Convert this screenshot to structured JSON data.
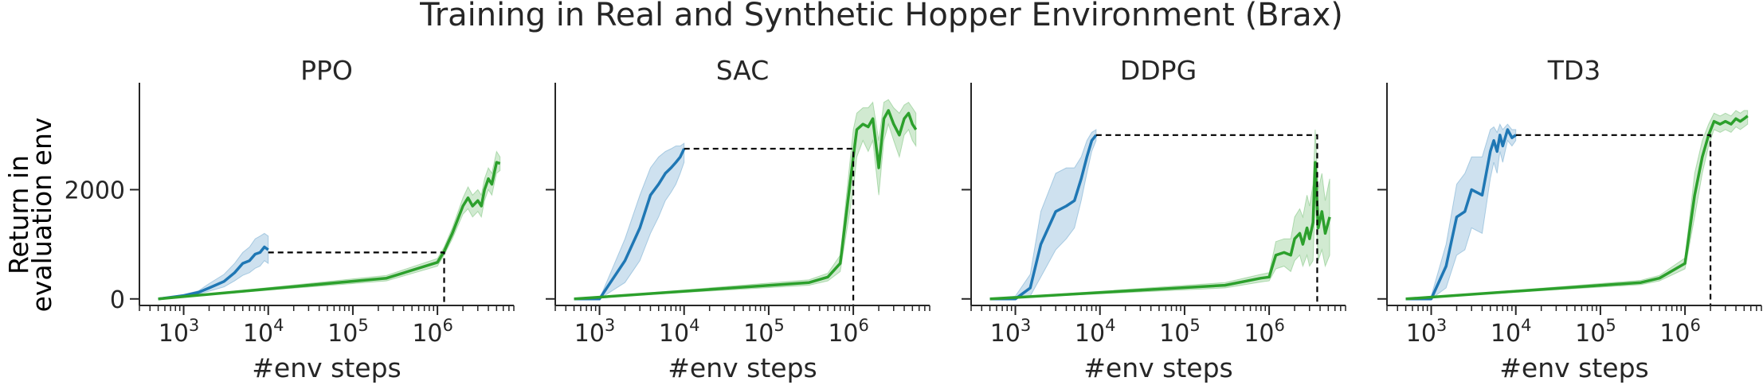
{
  "suptitle": "Training in Real and Synthetic Hopper Environment (Brax)",
  "ylabel_line1": "Return in",
  "ylabel_line2": "evaluation env",
  "colors": {
    "real": "#1f77b4",
    "synthetic": "#2ca02c",
    "reference": "#000000"
  },
  "chart_data": [
    {
      "type": "line",
      "title": "PPO",
      "xlabel": "#env steps",
      "x_scale": "log",
      "xlim": [
        300,
        8000000
      ],
      "ylim": [
        -120,
        3900
      ],
      "x_ticks": [
        "10^3",
        "10^4",
        "10^5",
        "10^6"
      ],
      "y_ticks": [
        "0",
        "2000"
      ],
      "series": [
        {
          "x": [
            500,
            1000,
            1500,
            2000,
            3000,
            4000,
            5000,
            6000,
            7000,
            8000,
            9000,
            10000
          ],
          "y": [
            0,
            60,
            120,
            200,
            320,
            480,
            650,
            700,
            820,
            850,
            950,
            900
          ],
          "lower": [
            0,
            40,
            90,
            140,
            220,
            330,
            430,
            480,
            560,
            600,
            700,
            650
          ],
          "upper": [
            0,
            80,
            150,
            280,
            450,
            650,
            850,
            950,
            1100,
            1150,
            1200,
            1150
          ]
        },
        {
          "x": [
            500,
            250000,
            1000000,
            1200000,
            1500000,
            2000000,
            2300000,
            2600000,
            3000000,
            3300000,
            3600000,
            4000000,
            4400000,
            5000000,
            5500000
          ],
          "y": [
            0,
            380,
            670,
            870,
            1200,
            1700,
            1850,
            1700,
            1800,
            1700,
            2000,
            2200,
            2100,
            2500,
            2480
          ],
          "lower": [
            0,
            330,
            600,
            800,
            1100,
            1550,
            1650,
            1500,
            1600,
            1500,
            1800,
            2000,
            1900,
            2300,
            2350
          ],
          "upper": [
            0,
            430,
            740,
            950,
            1300,
            1850,
            2050,
            1900,
            2000,
            1900,
            2200,
            2400,
            2300,
            2700,
            2600
          ]
        }
      ],
      "reference": {
        "y": 850,
        "x_start": 10000,
        "x_end": 1200000
      }
    },
    {
      "type": "line",
      "title": "SAC",
      "xlabel": "#env steps",
      "x_scale": "log",
      "xlim": [
        300,
        8000000
      ],
      "ylim": [
        -120,
        3900
      ],
      "x_ticks": [
        "10^3",
        "10^4",
        "10^5",
        "10^6"
      ],
      "y_ticks": [
        "0",
        "2000"
      ],
      "series": [
        {
          "x": [
            500,
            1000,
            2000,
            3000,
            4000,
            5000,
            6000,
            7000,
            8000,
            9000,
            10000
          ],
          "y": [
            0,
            0,
            700,
            1300,
            1900,
            2100,
            2300,
            2400,
            2500,
            2600,
            2750
          ],
          "lower": [
            0,
            0,
            300,
            700,
            1200,
            1500,
            1800,
            1950,
            2100,
            2300,
            2500
          ],
          "upper": [
            0,
            0,
            1100,
            1900,
            2400,
            2600,
            2700,
            2750,
            2800,
            2800,
            2850
          ]
        },
        {
          "x": [
            500,
            300000,
            500000,
            700000,
            1000000,
            1100000,
            1300000,
            1500000,
            1700000,
            2000000,
            2300000,
            2600000,
            3000000,
            3500000,
            4000000,
            4500000,
            5000000,
            5500000
          ],
          "y": [
            0,
            300,
            400,
            650,
            2600,
            3100,
            3200,
            3150,
            3300,
            2400,
            3300,
            3450,
            3200,
            3000,
            3300,
            3400,
            3200,
            3100
          ],
          "lower": [
            0,
            250,
            330,
            500,
            2000,
            2600,
            2900,
            2700,
            2900,
            1900,
            2900,
            3200,
            2900,
            2600,
            3000,
            3100,
            2900,
            2800
          ],
          "upper": [
            0,
            350,
            470,
            800,
            3100,
            3400,
            3500,
            3500,
            3600,
            2900,
            3600,
            3650,
            3500,
            3400,
            3550,
            3600,
            3500,
            3400
          ]
        }
      ],
      "reference": {
        "y": 2750,
        "x_start": 10000,
        "x_end": 1000000
      }
    },
    {
      "type": "line",
      "title": "DDPG",
      "xlabel": "#env steps",
      "x_scale": "log",
      "xlim": [
        300,
        8000000
      ],
      "ylim": [
        -120,
        3900
      ],
      "x_ticks": [
        "10^3",
        "10^4",
        "10^5",
        "10^6"
      ],
      "y_ticks": [
        "0",
        "2000"
      ],
      "series": [
        {
          "x": [
            500,
            1000,
            1500,
            2000,
            3000,
            4000,
            5000,
            6000,
            7000,
            8000,
            9000
          ],
          "y": [
            0,
            0,
            200,
            1000,
            1600,
            1700,
            1800,
            2200,
            2600,
            2900,
            3000
          ],
          "lower": [
            0,
            0,
            50,
            400,
            900,
            1100,
            1300,
            1800,
            2300,
            2700,
            2900
          ],
          "upper": [
            0,
            50,
            450,
            1600,
            2300,
            2400,
            2400,
            2600,
            2900,
            3050,
            3100
          ]
        },
        {
          "x": [
            500,
            300000,
            800000,
            1000000,
            1200000,
            1500000,
            1800000,
            2000000,
            2300000,
            2500000,
            2800000,
            3000000,
            3300000,
            3500000,
            3800000,
            4200000,
            4600000,
            5200000
          ],
          "y": [
            0,
            250,
            380,
            400,
            800,
            850,
            800,
            1100,
            1200,
            1000,
            1300,
            1100,
            1400,
            2500,
            1300,
            1600,
            1200,
            1500
          ],
          "lower": [
            0,
            200,
            310,
            330,
            550,
            600,
            500,
            700,
            800,
            600,
            800,
            600,
            700,
            1800,
            700,
            900,
            600,
            800
          ],
          "upper": [
            0,
            300,
            450,
            480,
            1050,
            1100,
            1100,
            1500,
            1650,
            1500,
            1900,
            1700,
            2100,
            3100,
            2000,
            2300,
            1800,
            2200
          ]
        }
      ],
      "reference": {
        "y": 3000,
        "x_start": 9000,
        "x_end": 3700000
      }
    },
    {
      "type": "line",
      "title": "TD3",
      "xlabel": "#env steps",
      "x_scale": "log",
      "xlim": [
        300,
        8000000
      ],
      "ylim": [
        -120,
        3900
      ],
      "x_ticks": [
        "10^3",
        "10^4",
        "10^5",
        "10^6"
      ],
      "y_ticks": [
        "0",
        "2000"
      ],
      "series": [
        {
          "x": [
            500,
            1000,
            1500,
            2000,
            2500,
            3000,
            4000,
            5000,
            5500,
            6000,
            6500,
            7000,
            8000,
            9000,
            10000
          ],
          "y": [
            0,
            0,
            600,
            1500,
            1600,
            2000,
            1900,
            2700,
            2900,
            2700,
            3000,
            2800,
            3100,
            2950,
            3000
          ],
          "lower": [
            0,
            0,
            200,
            800,
            900,
            1300,
            1200,
            2200,
            2500,
            2300,
            2700,
            2500,
            2900,
            2800,
            2900
          ],
          "upper": [
            0,
            50,
            1000,
            2100,
            2300,
            2600,
            2600,
            3100,
            3150,
            3050,
            3200,
            3100,
            3200,
            3100,
            3100
          ]
        },
        {
          "x": [
            500,
            300000,
            500000,
            1000000,
            1300000,
            1600000,
            1900000,
            2200000,
            2600000,
            3000000,
            3500000,
            4000000,
            4500000,
            5000000,
            5500000
          ],
          "y": [
            0,
            300,
            380,
            650,
            1900,
            2600,
            3000,
            3250,
            3200,
            3250,
            3200,
            3300,
            3250,
            3300,
            3350
          ],
          "lower": [
            0,
            260,
            330,
            550,
            1500,
            2300,
            2800,
            3100,
            3050,
            3100,
            3050,
            3150,
            3100,
            3150,
            3200
          ],
          "upper": [
            0,
            340,
            430,
            750,
            2300,
            2900,
            3200,
            3400,
            3350,
            3400,
            3350,
            3450,
            3400,
            3450,
            3450
          ]
        }
      ],
      "reference": {
        "y": 3000,
        "x_start": 10000,
        "x_end": 2000000
      }
    }
  ]
}
